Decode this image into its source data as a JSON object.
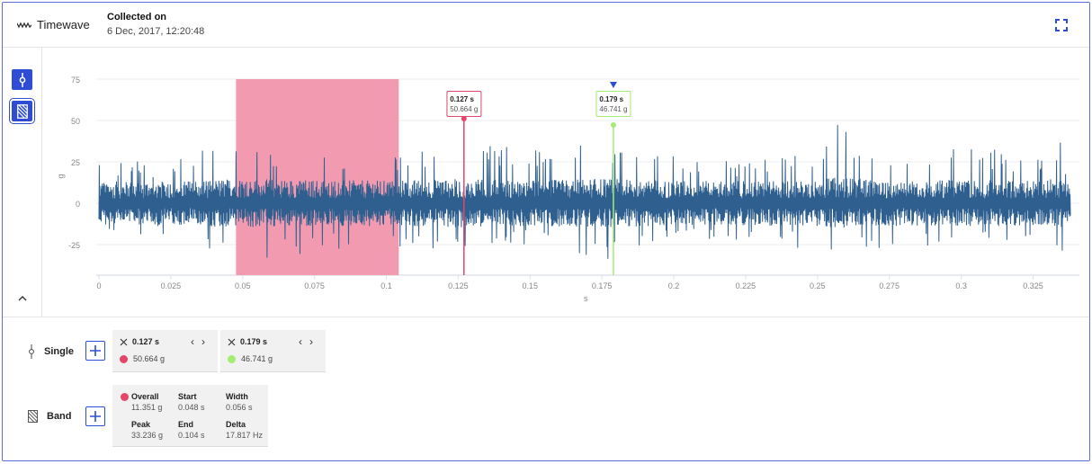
{
  "header": {
    "title": "Timewave",
    "collected_label": "Collected on",
    "collected_value": "6 Dec, 2017, 12:20:48",
    "fullscreen_icon": "expand-icon"
  },
  "sidebar": {
    "tools": [
      {
        "name": "single-cursor-tool",
        "icon": "single-cursor-icon",
        "active": false
      },
      {
        "name": "band-cursor-tool",
        "icon": "band-cursor-icon",
        "active": true
      }
    ],
    "collapse_icon": "chevron-up-icon"
  },
  "colors": {
    "accent": "#2e4dd4",
    "waveform": "#2f5f8f",
    "band_fill": "#f29bb0",
    "cursor1": "#e4456b",
    "cursor2": "#a4ec72",
    "marker": "#2e4dd4"
  },
  "chart_data": {
    "type": "line",
    "title": "Timewave",
    "xlabel": "s",
    "ylabel": "g",
    "xlim": [
      0,
      0.338
    ],
    "ylim": [
      -44,
      75
    ],
    "x_ticks": [
      "0",
      "0.025",
      "0.05",
      "0.075",
      "0.1",
      "0.125",
      "0.15",
      "0.175",
      "0.2",
      "0.225",
      "0.25",
      "0.275",
      "0.3",
      "0.325"
    ],
    "y_ticks": [
      "75",
      "50",
      "25",
      "0",
      "-25"
    ],
    "grid": true,
    "description": "Vibration time waveform, noise-like oscillation around 0 g, typical amplitude ±15 g with peaks up to ~50 g and troughs to ~-35 g",
    "envelope": {
      "x": [
        0,
        0.025,
        0.045,
        0.05,
        0.075,
        0.1,
        0.125,
        0.15,
        0.175,
        0.2,
        0.225,
        0.25,
        0.257,
        0.275,
        0.3,
        0.325,
        0.335,
        0.338
      ],
      "max": [
        27,
        25,
        40,
        35,
        30,
        28,
        42,
        32,
        37,
        30,
        25,
        33,
        50,
        30,
        35,
        30,
        44,
        10
      ],
      "min": [
        -20,
        -22,
        -30,
        -35,
        -30,
        -28,
        -28,
        -25,
        -35,
        -25,
        -25,
        -28,
        -35,
        -25,
        -28,
        -25,
        -33,
        -10
      ]
    },
    "band": {
      "start": 0.048,
      "end": 0.104,
      "color": "#f29bb0"
    },
    "cursors": [
      {
        "x": 0.127,
        "value": 50.664,
        "time_label": "0.127 s",
        "value_label": "50.664 g",
        "color": "#e4456b"
      },
      {
        "x": 0.179,
        "value": 46.741,
        "time_label": "0.179 s",
        "value_label": "46.741 g",
        "color": "#a4ec72",
        "selected": true
      }
    ]
  },
  "single": {
    "label": "Single",
    "icon": "single-cursor-icon",
    "add_icon": "plus-icon",
    "cursors": [
      {
        "time": "0.127 s",
        "value": "50.664 g",
        "color": "#e4456b"
      },
      {
        "time": "0.179 s",
        "value": "46.741 g",
        "color": "#a4ec72"
      }
    ]
  },
  "band": {
    "label": "Band",
    "icon": "band-cursor-icon",
    "add_icon": "plus-icon",
    "color": "#e4456b",
    "fields": {
      "overall_label": "Overall",
      "overall_value": "11.351 g",
      "start_label": "Start",
      "start_value": "0.048 s",
      "width_label": "Width",
      "width_value": "0.056 s",
      "peak_label": "Peak",
      "peak_value": "33.236 g",
      "end_label": "End",
      "end_value": "0.104 s",
      "delta_label": "Delta",
      "delta_value": "17.817 Hz"
    }
  }
}
